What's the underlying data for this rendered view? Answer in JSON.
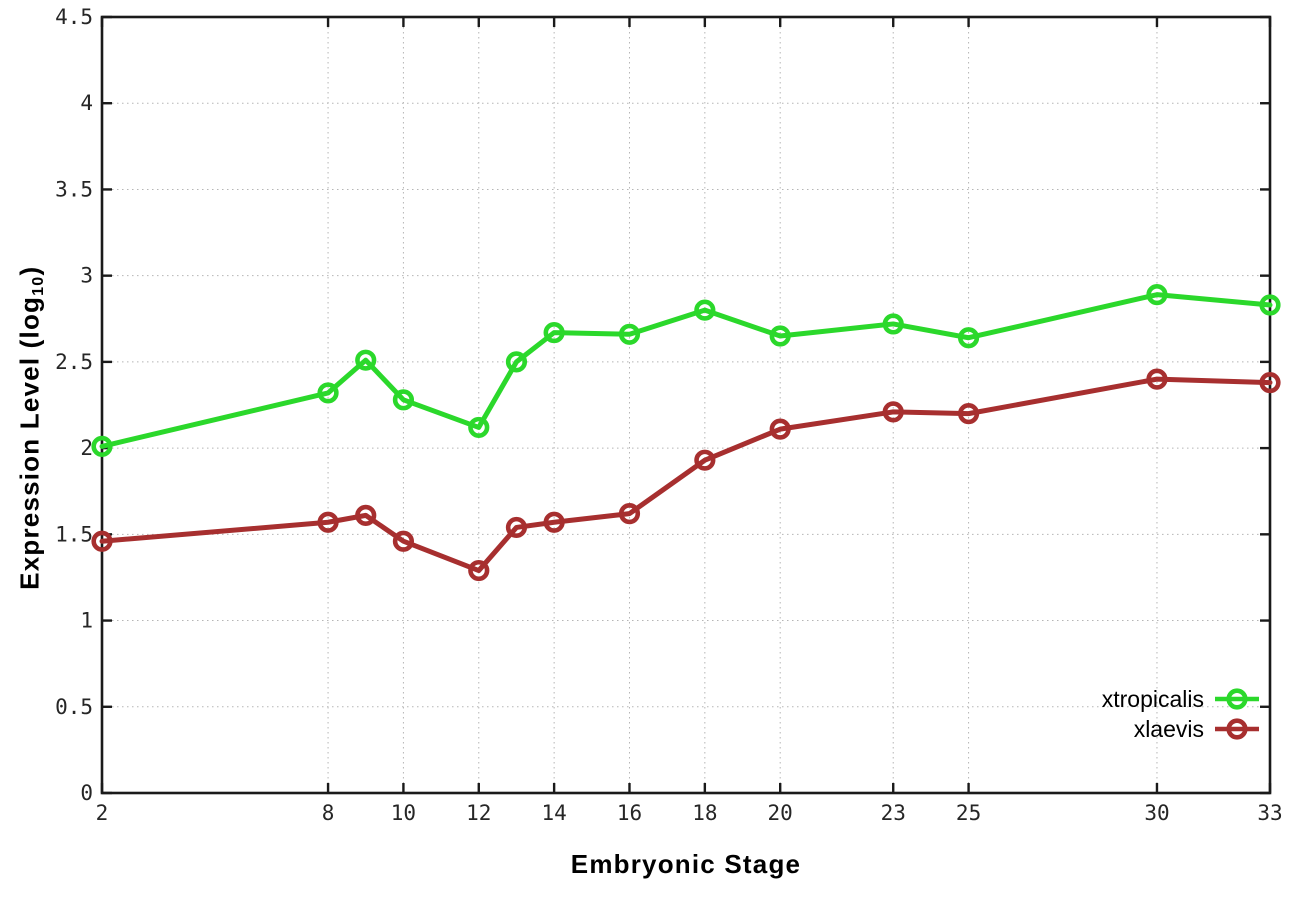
{
  "chart_data": {
    "type": "line",
    "title": "",
    "xlabel": "Embryonic Stage",
    "ylabel": {
      "prefix": "Expression Level (log",
      "sub": "10",
      "suffix": ")"
    },
    "xlim": [
      2,
      33
    ],
    "ylim": [
      0,
      4.5
    ],
    "grid": true,
    "legend_position": "bottom-right",
    "marker": "open-circle",
    "background_color": "#ffffff",
    "axis_color": "#1a1a1a",
    "grid_color": "#b5b5b5",
    "x": [
      2,
      8,
      9,
      10,
      12,
      13,
      14,
      16,
      18,
      20,
      23,
      25,
      30,
      33
    ],
    "series": [
      {
        "name": "xtropicalis",
        "color": "#2bd82b",
        "values": [
          2.01,
          2.32,
          2.51,
          2.28,
          2.12,
          2.5,
          2.67,
          2.66,
          2.8,
          2.65,
          2.72,
          2.64,
          2.89,
          2.83
        ]
      },
      {
        "name": "xlaevis",
        "color": "#a72f2f",
        "values": [
          1.46,
          1.57,
          1.61,
          1.46,
          1.29,
          1.54,
          1.57,
          1.62,
          1.93,
          2.11,
          2.21,
          2.2,
          2.4,
          2.38
        ]
      }
    ],
    "x_ticks": {
      "values": [
        2,
        8,
        10,
        12,
        14,
        16,
        18,
        20,
        23,
        25,
        30,
        33
      ],
      "labels": [
        "2",
        "8",
        "10",
        "12",
        "14",
        "16",
        "18",
        "20",
        "23",
        "25",
        "30",
        "33"
      ]
    },
    "y_ticks": {
      "values": [
        0,
        0.5,
        1,
        1.5,
        2,
        2.5,
        3,
        3.5,
        4,
        4.5
      ],
      "labels": [
        "0",
        "0.5",
        "1",
        "1.5",
        "2",
        "2.5",
        "3",
        "3.5",
        "4",
        "4.5"
      ]
    }
  }
}
